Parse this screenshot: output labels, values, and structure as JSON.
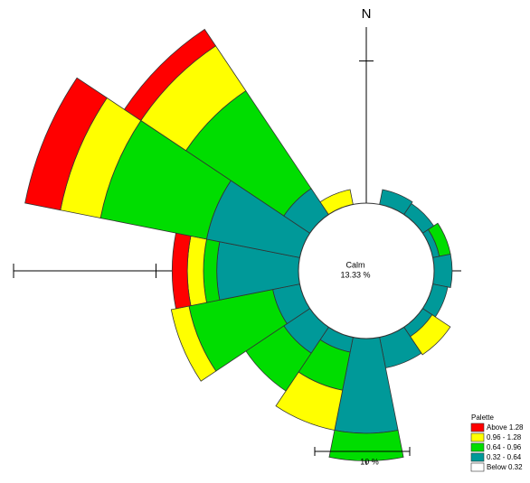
{
  "chart_data": {
    "type": "windrose",
    "north_label": "N",
    "categories": [
      "N",
      null,
      null,
      null,
      null,
      null,
      null,
      null,
      null,
      null,
      null,
      null,
      null,
      null,
      null,
      null
    ],
    "calm": {
      "label": "Calm",
      "value": 13.33,
      "value_label": "13.33 %"
    },
    "legend_title": "Palette",
    "series": [
      {
        "name": "Above 1.28",
        "color": "#ff0000",
        "values": [
          0,
          0,
          0,
          0,
          0,
          0,
          0,
          0,
          0,
          0,
          0,
          0,
          1.6,
          3.8,
          2.1,
          0
        ]
      },
      {
        "name": "0.96 - 1.28",
        "color": "#ffff00",
        "values": [
          0,
          0,
          0,
          0,
          0,
          0,
          2.3,
          0,
          0,
          4.3,
          0,
          1.9,
          1.7,
          4.3,
          5.7,
          1.6
        ]
      },
      {
        "name": "0.64 - 0.96",
        "color": "#00dd00",
        "values": [
          0,
          0,
          0,
          1.2,
          0,
          0,
          0,
          0,
          2.9,
          4.1,
          4.8,
          9.0,
          1.4,
          11.4,
          12.4,
          0
        ]
      },
      {
        "name": "0.32 - 0.64",
        "color": "#009999",
        "values": [
          0,
          1.6,
          1.4,
          0.7,
          1.9,
          1.6,
          1.2,
          3.3,
          10.0,
          1.6,
          3.3,
          2.9,
          8.6,
          10.0,
          3.3,
          0
        ]
      },
      {
        "name": "Below 0.32",
        "color": "#ffffff",
        "values": [
          0,
          0,
          0,
          0,
          0,
          0,
          0,
          0,
          0,
          0,
          0,
          0,
          0,
          0,
          0,
          0
        ]
      }
    ],
    "radial_ticks": [
      15,
      30
    ],
    "scale_bar": {
      "value": 10,
      "label": "10 %"
    }
  }
}
